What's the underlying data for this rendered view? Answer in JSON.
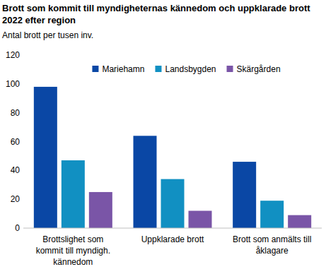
{
  "chart_data": {
    "type": "bar",
    "title": "Brott som kommit till myndigheternas kännedom och uppklarade brott 2022 efter region",
    "subtitle": "Antal brott per tusen inv.",
    "categories": [
      "Brottslighet som kommit till myndigh. kännedom",
      "Uppklarade brott",
      "Brott som anmälts till åklagare"
    ],
    "series": [
      {
        "name": "Mariehamn",
        "color": "#0a47a5",
        "values": [
          98,
          64,
          46
        ]
      },
      {
        "name": "Landsbygden",
        "color": "#1190c2",
        "values": [
          47,
          34,
          19
        ]
      },
      {
        "name": "Skärgården",
        "color": "#7a55a7",
        "values": [
          25,
          12,
          9
        ]
      }
    ],
    "ylim": [
      0,
      120
    ],
    "yticks": [
      0,
      20,
      40,
      60,
      80,
      100,
      120
    ],
    "grid": false,
    "legend": "top"
  }
}
